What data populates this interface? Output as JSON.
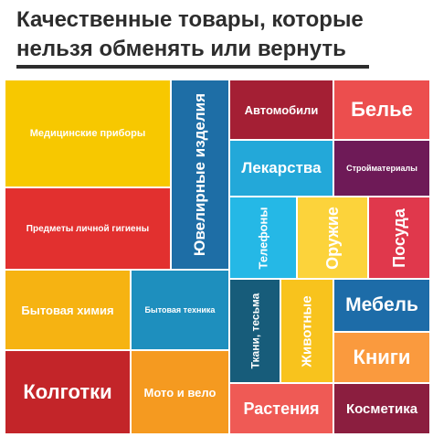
{
  "header": {
    "line1": "Качественные товары, которые",
    "line2": "нельзя обменять или вернуть"
  },
  "colors": {
    "yellow": "#f7c800",
    "red": "#e2302f",
    "yellow_orange": "#f6b312",
    "dark_red": "#c32529",
    "teal": "#1e8fbe",
    "orange": "#f59a20",
    "navy": "#1c4e7d",
    "maroon": "#a41f34",
    "coral": "#ec4e4e",
    "sky": "#23a8d9",
    "plum": "#6f1f4c",
    "purple": "#6e1a57",
    "cyan": "#25b8e6",
    "light_yellow": "#fcd33b",
    "pink_red": "#e0384c",
    "deep_teal": "#175c7a",
    "gold": "#f8c31d",
    "blue": "#1d6ca8",
    "light_orange": "#fa9a3e",
    "salmon": "#ef5a55",
    "burgundy": "#8b1e3f"
  },
  "tiles": {
    "medical": "Медицинские приборы",
    "hygiene": "Предметы личной гигиены",
    "household_chem": "Бытовая химия",
    "tights": "Колготки",
    "jewelry": "Ювелирные изделия",
    "appliances": "Бытовая техника",
    "moto": "Мото и вело",
    "cars": "Автомобили",
    "underwear": "Белье",
    "medicine": "Лекарства",
    "building": "Стройматериалы",
    "phones": "Телефоны",
    "weapons": "Оружие",
    "dishes": "Посуда",
    "fabrics": "Ткани, тесьма",
    "animals": "Животные",
    "furniture": "Мебель",
    "books": "Книги",
    "plants": "Растения",
    "cosmetics": "Косметика"
  }
}
